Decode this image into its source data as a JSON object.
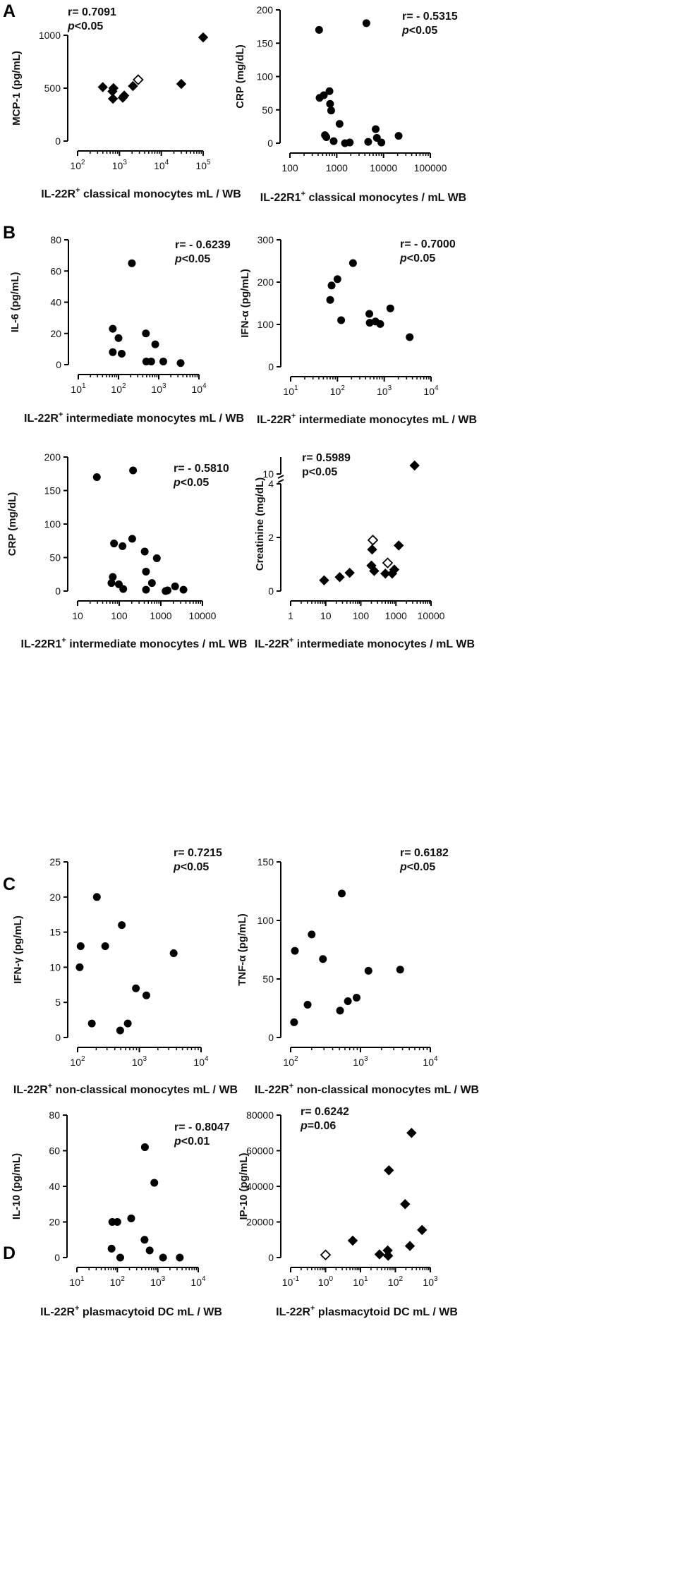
{
  "panels": [
    {
      "letter": "A"
    },
    {
      "letter": "B"
    },
    {
      "letter": "C"
    },
    {
      "letter": "D"
    }
  ],
  "chart_data": [
    {
      "id": "A-left",
      "type": "scatter",
      "xscale": "log",
      "xlim": [
        100,
        100000
      ],
      "xticks": [
        {
          "v": 100,
          "label": "10",
          "exp": "2"
        },
        {
          "v": 1000,
          "label": "10",
          "exp": "3"
        },
        {
          "v": 10000,
          "label": "10",
          "exp": "4"
        },
        {
          "v": 100000,
          "label": "10",
          "exp": "5"
        }
      ],
      "ylim": [
        0,
        1000
      ],
      "yticks": [
        0,
        500,
        1000
      ],
      "ylabel": "MCP-1 (pg/mL)",
      "xlabel_parts": [
        "IL-22R",
        "+",
        " classical monocytes mL / WB"
      ],
      "stat": {
        "r": "r= 0.7091",
        "p_italic": "p",
        "p_rest": "<0.05"
      },
      "stat_pos": "top-left",
      "points": [
        {
          "x": 400,
          "y": 510,
          "m": "diamond"
        },
        {
          "x": 680,
          "y": 470,
          "m": "diamond"
        },
        {
          "x": 720,
          "y": 500,
          "m": "diamond"
        },
        {
          "x": 700,
          "y": 400,
          "m": "diamond"
        },
        {
          "x": 1200,
          "y": 410,
          "m": "diamond"
        },
        {
          "x": 1300,
          "y": 430,
          "m": "diamond"
        },
        {
          "x": 2100,
          "y": 520,
          "m": "diamond"
        },
        {
          "x": 2800,
          "y": 580,
          "m": "diamond-open"
        },
        {
          "x": 30000,
          "y": 540,
          "m": "diamond"
        },
        {
          "x": 100000,
          "y": 980,
          "m": "diamond"
        }
      ]
    },
    {
      "id": "A-right",
      "type": "scatter",
      "xscale": "log",
      "xlim": [
        100,
        100000
      ],
      "xticks": [
        {
          "v": 100,
          "label": "100"
        },
        {
          "v": 1000,
          "label": "1000"
        },
        {
          "v": 10000,
          "label": "10000"
        },
        {
          "v": 100000,
          "label": "100000"
        }
      ],
      "ylim": [
        0,
        200
      ],
      "yticks": [
        0,
        50,
        100,
        150,
        200
      ],
      "ylabel": "CRP (mg/dL)",
      "xlabel_parts": [
        "IL-22R1",
        "+",
        " classical monocytes / mL WB"
      ],
      "stat": {
        "r": "r= - 0.5315",
        "p_italic": "p",
        "p_rest": "<0.05"
      },
      "stat_pos": "top-right",
      "points": [
        {
          "x": 420,
          "y": 170,
          "m": "circle"
        },
        {
          "x": 4300,
          "y": 180,
          "m": "circle"
        },
        {
          "x": 430,
          "y": 68,
          "m": "circle"
        },
        {
          "x": 530,
          "y": 72,
          "m": "circle"
        },
        {
          "x": 700,
          "y": 78,
          "m": "circle"
        },
        {
          "x": 720,
          "y": 59,
          "m": "circle"
        },
        {
          "x": 760,
          "y": 49,
          "m": "circle"
        },
        {
          "x": 1150,
          "y": 29,
          "m": "circle"
        },
        {
          "x": 560,
          "y": 12,
          "m": "circle"
        },
        {
          "x": 600,
          "y": 9,
          "m": "circle"
        },
        {
          "x": 860,
          "y": 3,
          "m": "circle"
        },
        {
          "x": 1500,
          "y": 0,
          "m": "circle"
        },
        {
          "x": 1900,
          "y": 1,
          "m": "circle"
        },
        {
          "x": 4700,
          "y": 2,
          "m": "circle"
        },
        {
          "x": 6800,
          "y": 21,
          "m": "circle"
        },
        {
          "x": 7200,
          "y": 8,
          "m": "circle"
        },
        {
          "x": 9000,
          "y": 1,
          "m": "circle"
        },
        {
          "x": 21000,
          "y": 11,
          "m": "circle"
        }
      ]
    },
    {
      "id": "B-1",
      "type": "scatter",
      "xscale": "log",
      "xlim": [
        10,
        10000
      ],
      "xticks": [
        {
          "v": 10,
          "label": "10",
          "exp": "1"
        },
        {
          "v": 100,
          "label": "10",
          "exp": "2"
        },
        {
          "v": 1000,
          "label": "10",
          "exp": "3"
        },
        {
          "v": 10000,
          "label": "10",
          "exp": "4"
        }
      ],
      "ylim": [
        0,
        80
      ],
      "yticks": [
        0,
        20,
        40,
        60,
        80
      ],
      "ylabel": "IL-6 (pg/mL)",
      "xlabel_parts": [
        "IL-22R",
        "+",
        " intermediate monocytes mL / WB"
      ],
      "stat": {
        "r": "r= - 0.6239",
        "p_italic": "p",
        "p_rest": "<0.05"
      },
      "stat_pos": "top-right",
      "points": [
        {
          "x": 215,
          "y": 65,
          "m": "circle"
        },
        {
          "x": 72,
          "y": 23,
          "m": "circle"
        },
        {
          "x": 100,
          "y": 17,
          "m": "circle"
        },
        {
          "x": 72,
          "y": 8,
          "m": "circle"
        },
        {
          "x": 120,
          "y": 7,
          "m": "circle"
        },
        {
          "x": 480,
          "y": 20,
          "m": "circle"
        },
        {
          "x": 820,
          "y": 13,
          "m": "circle"
        },
        {
          "x": 490,
          "y": 2,
          "m": "circle"
        },
        {
          "x": 650,
          "y": 2,
          "m": "circle"
        },
        {
          "x": 1300,
          "y": 2,
          "m": "circle"
        },
        {
          "x": 3500,
          "y": 1,
          "m": "circle"
        }
      ]
    },
    {
      "id": "B-2",
      "type": "scatter",
      "xscale": "log",
      "xlim": [
        10,
        10000
      ],
      "xticks": [
        {
          "v": 10,
          "label": "10",
          "exp": "1"
        },
        {
          "v": 100,
          "label": "10",
          "exp": "2"
        },
        {
          "v": 1000,
          "label": "10",
          "exp": "3"
        },
        {
          "v": 10000,
          "label": "10",
          "exp": "4"
        }
      ],
      "ylim": [
        0,
        300
      ],
      "yticks": [
        0,
        100,
        200,
        300
      ],
      "ylabel": "IFN-α (pg/mL)",
      "xlabel_parts": [
        "IL-22R",
        "+",
        " intermediate monocytes mL / WB"
      ],
      "stat": {
        "r": "r= - 0.7000",
        "p_italic": "p",
        "p_rest": "<0.05"
      },
      "stat_pos": "top-right",
      "points": [
        {
          "x": 215,
          "y": 245,
          "m": "circle"
        },
        {
          "x": 100,
          "y": 207,
          "m": "circle"
        },
        {
          "x": 75,
          "y": 192,
          "m": "circle"
        },
        {
          "x": 70,
          "y": 158,
          "m": "circle"
        },
        {
          "x": 120,
          "y": 110,
          "m": "circle"
        },
        {
          "x": 480,
          "y": 125,
          "m": "circle"
        },
        {
          "x": 490,
          "y": 104,
          "m": "circle"
        },
        {
          "x": 650,
          "y": 107,
          "m": "circle"
        },
        {
          "x": 820,
          "y": 101,
          "m": "circle"
        },
        {
          "x": 1350,
          "y": 138,
          "m": "circle"
        },
        {
          "x": 3500,
          "y": 70,
          "m": "circle"
        }
      ]
    },
    {
      "id": "B-3",
      "type": "scatter",
      "xscale": "log",
      "xlim": [
        10,
        10000
      ],
      "xticks": [
        {
          "v": 10,
          "label": "10"
        },
        {
          "v": 100,
          "label": "100"
        },
        {
          "v": 1000,
          "label": "1000"
        },
        {
          "v": 10000,
          "label": "10000"
        }
      ],
      "ylim": [
        0,
        200
      ],
      "yticks": [
        0,
        50,
        100,
        150,
        200
      ],
      "ylabel": "CRP (mg/dL)",
      "xlabel_parts": [
        "IL-22R1",
        "+",
        " intermediate monocytes / mL WB"
      ],
      "stat": {
        "r": "r= - 0.5810",
        "p_italic": "p",
        "p_rest": "<0.05"
      },
      "stat_pos": "top-right",
      "points": [
        {
          "x": 29,
          "y": 170,
          "m": "circle"
        },
        {
          "x": 215,
          "y": 180,
          "m": "circle"
        },
        {
          "x": 75,
          "y": 71,
          "m": "circle"
        },
        {
          "x": 120,
          "y": 67,
          "m": "circle"
        },
        {
          "x": 205,
          "y": 78,
          "m": "circle"
        },
        {
          "x": 410,
          "y": 59,
          "m": "circle"
        },
        {
          "x": 800,
          "y": 49,
          "m": "circle"
        },
        {
          "x": 440,
          "y": 29,
          "m": "circle"
        },
        {
          "x": 70,
          "y": 21,
          "m": "circle"
        },
        {
          "x": 65,
          "y": 12,
          "m": "circle"
        },
        {
          "x": 98,
          "y": 10,
          "m": "circle"
        },
        {
          "x": 125,
          "y": 3,
          "m": "circle"
        },
        {
          "x": 440,
          "y": 2,
          "m": "circle"
        },
        {
          "x": 610,
          "y": 12,
          "m": "circle"
        },
        {
          "x": 1300,
          "y": 0,
          "m": "circle"
        },
        {
          "x": 1450,
          "y": 1,
          "m": "circle"
        },
        {
          "x": 2200,
          "y": 7,
          "m": "circle"
        },
        {
          "x": 3500,
          "y": 2,
          "m": "circle"
        }
      ]
    },
    {
      "id": "B-4",
      "type": "scatter",
      "xscale": "log",
      "yscale": "broken",
      "xlim": [
        1,
        10000
      ],
      "xticks": [
        {
          "v": 1,
          "label": "1"
        },
        {
          "v": 10,
          "label": "10"
        },
        {
          "v": 100,
          "label": "100"
        },
        {
          "v": 1000,
          "label": "1000"
        },
        {
          "v": 10000,
          "label": "10000"
        }
      ],
      "ylim": [
        0,
        11
      ],
      "ybreak": [
        4,
        10
      ],
      "yticks": [
        0,
        2,
        4,
        10
      ],
      "ylabel": "Creatinine (mg/dL)",
      "xlabel_parts": [
        "IL-22R",
        "+",
        " intermediate monocytes / mL WB"
      ],
      "stat": {
        "r": "r= 0.5989",
        "p_italic": "",
        "p_rest": "p<0.05"
      },
      "stat_pos": "top-left",
      "points": [
        {
          "x": 9,
          "y": 0.4,
          "m": "diamond"
        },
        {
          "x": 25,
          "y": 0.52,
          "m": "diamond"
        },
        {
          "x": 48,
          "y": 0.68,
          "m": "diamond"
        },
        {
          "x": 200,
          "y": 0.95,
          "m": "diamond"
        },
        {
          "x": 210,
          "y": 1.55,
          "m": "diamond"
        },
        {
          "x": 240,
          "y": 0.75,
          "m": "diamond"
        },
        {
          "x": 220,
          "y": 1.9,
          "m": "diamond-open"
        },
        {
          "x": 580,
          "y": 1.05,
          "m": "diamond-open"
        },
        {
          "x": 500,
          "y": 0.65,
          "m": "diamond"
        },
        {
          "x": 780,
          "y": 0.65,
          "m": "diamond"
        },
        {
          "x": 900,
          "y": 0.8,
          "m": "diamond"
        },
        {
          "x": 1200,
          "y": 1.7,
          "m": "diamond"
        },
        {
          "x": 3400,
          "y": 10.5,
          "m": "diamond"
        }
      ]
    },
    {
      "id": "C-1",
      "type": "scatter",
      "xscale": "log",
      "xlim": [
        100,
        10000
      ],
      "xticks": [
        {
          "v": 100,
          "label": "10",
          "exp": "2"
        },
        {
          "v": 1000,
          "label": "10",
          "exp": "3"
        },
        {
          "v": 10000,
          "label": "10",
          "exp": "4"
        }
      ],
      "ylim": [
        0,
        25
      ],
      "yticks": [
        0,
        5,
        10,
        15,
        20,
        25
      ],
      "ylabel": "IFN-γ (pg/mL)",
      "xlabel_parts": [
        "IL-22R",
        "+",
        " non-classical monocytes mL / WB"
      ],
      "stat": {
        "r": "r= 0.7215",
        "p_italic": "p",
        "p_rest": "<0.05"
      },
      "stat_pos": "top-right",
      "points": [
        {
          "x": 205,
          "y": 20,
          "m": "circle"
        },
        {
          "x": 112,
          "y": 13,
          "m": "circle"
        },
        {
          "x": 108,
          "y": 10,
          "m": "circle"
        },
        {
          "x": 280,
          "y": 13,
          "m": "circle"
        },
        {
          "x": 520,
          "y": 16,
          "m": "circle"
        },
        {
          "x": 170,
          "y": 2,
          "m": "circle"
        },
        {
          "x": 490,
          "y": 1,
          "m": "circle"
        },
        {
          "x": 650,
          "y": 2,
          "m": "circle"
        },
        {
          "x": 880,
          "y": 7,
          "m": "circle"
        },
        {
          "x": 1300,
          "y": 6,
          "m": "circle"
        },
        {
          "x": 3600,
          "y": 12,
          "m": "circle"
        }
      ]
    },
    {
      "id": "C-2",
      "type": "scatter",
      "xscale": "log",
      "xlim": [
        100,
        10000
      ],
      "xticks": [
        {
          "v": 100,
          "label": "10",
          "exp": "2"
        },
        {
          "v": 1000,
          "label": "10",
          "exp": "3"
        },
        {
          "v": 10000,
          "label": "10",
          "exp": "4"
        }
      ],
      "ylim": [
        0,
        150
      ],
      "yticks": [
        0,
        50,
        100,
        150
      ],
      "ylabel": "TNF-α (pg/mL)",
      "xlabel_parts": [
        "IL-22R",
        "+",
        " non-classical monocytes mL / WB"
      ],
      "stat": {
        "r": "r= 0.6182",
        "p_italic": "p",
        "p_rest": "<0.05"
      },
      "stat_pos": "top-right",
      "points": [
        {
          "x": 115,
          "y": 74,
          "m": "circle"
        },
        {
          "x": 112,
          "y": 13,
          "m": "circle"
        },
        {
          "x": 200,
          "y": 88,
          "m": "circle"
        },
        {
          "x": 175,
          "y": 28,
          "m": "circle"
        },
        {
          "x": 290,
          "y": 67,
          "m": "circle"
        },
        {
          "x": 540,
          "y": 123,
          "m": "circle"
        },
        {
          "x": 510,
          "y": 23,
          "m": "circle"
        },
        {
          "x": 660,
          "y": 31,
          "m": "circle"
        },
        {
          "x": 880,
          "y": 34,
          "m": "circle"
        },
        {
          "x": 1300,
          "y": 57,
          "m": "circle"
        },
        {
          "x": 3700,
          "y": 58,
          "m": "circle"
        }
      ]
    },
    {
      "id": "D-1",
      "type": "scatter",
      "xscale": "log",
      "xlim": [
        10,
        10000
      ],
      "xticks": [
        {
          "v": 10,
          "label": "10",
          "exp": "1"
        },
        {
          "v": 100,
          "label": "10",
          "exp": "2"
        },
        {
          "v": 1000,
          "label": "10",
          "exp": "3"
        },
        {
          "v": 10000,
          "label": "10",
          "exp": "4"
        }
      ],
      "ylim": [
        0,
        80
      ],
      "yticks": [
        0,
        20,
        40,
        60,
        80
      ],
      "ylabel": "IL-10 (pg/mL)",
      "xlabel_parts": [
        "IL-22R",
        "+",
        " plasmacytoid DC mL / WB"
      ],
      "stat": {
        "r": "r= - 0.8047",
        "p_italic": "p",
        "p_rest": "<0.01"
      },
      "stat_pos": "top-right",
      "points": [
        {
          "x": 480,
          "y": 62,
          "m": "circle"
        },
        {
          "x": 820,
          "y": 42,
          "m": "circle"
        },
        {
          "x": 220,
          "y": 22,
          "m": "circle"
        },
        {
          "x": 75,
          "y": 20,
          "m": "circle"
        },
        {
          "x": 100,
          "y": 20,
          "m": "circle"
        },
        {
          "x": 72,
          "y": 5,
          "m": "circle"
        },
        {
          "x": 118,
          "y": 0,
          "m": "circle"
        },
        {
          "x": 470,
          "y": 10,
          "m": "circle"
        },
        {
          "x": 630,
          "y": 4,
          "m": "circle"
        },
        {
          "x": 1350,
          "y": 0,
          "m": "circle"
        },
        {
          "x": 3500,
          "y": 0,
          "m": "circle"
        }
      ]
    },
    {
      "id": "D-2",
      "type": "scatter",
      "xscale": "log",
      "xlim": [
        0.1,
        1000
      ],
      "xticks": [
        {
          "v": 0.1,
          "label": "10",
          "exp": "-1"
        },
        {
          "v": 1,
          "label": "10",
          "exp": "0"
        },
        {
          "v": 10,
          "label": "10",
          "exp": "1"
        },
        {
          "v": 100,
          "label": "10",
          "exp": "2"
        },
        {
          "v": 1000,
          "label": "10",
          "exp": "3"
        }
      ],
      "ylim": [
        0,
        80000
      ],
      "yticks": [
        0,
        20000,
        40000,
        60000,
        80000
      ],
      "ylabel": "IP-10 (pg/mL)",
      "xlabel_parts": [
        "IL-22R",
        "+",
        " plasmacytoid DC mL / WB"
      ],
      "stat": {
        "r": "r= 0.6242",
        "p_italic": "p",
        "p_rest": "=0.06"
      },
      "stat_pos": "top-left",
      "points": [
        {
          "x": 1,
          "y": 1500,
          "m": "diamond-open"
        },
        {
          "x": 6,
          "y": 9500,
          "m": "diamond"
        },
        {
          "x": 35,
          "y": 1800,
          "m": "diamond"
        },
        {
          "x": 60,
          "y": 4000,
          "m": "diamond"
        },
        {
          "x": 62,
          "y": 1000,
          "m": "diamond"
        },
        {
          "x": 65,
          "y": 49000,
          "m": "diamond"
        },
        {
          "x": 190,
          "y": 30000,
          "m": "diamond"
        },
        {
          "x": 260,
          "y": 6500,
          "m": "diamond"
        },
        {
          "x": 290,
          "y": 70000,
          "m": "diamond"
        },
        {
          "x": 580,
          "y": 15500,
          "m": "diamond"
        }
      ]
    }
  ]
}
